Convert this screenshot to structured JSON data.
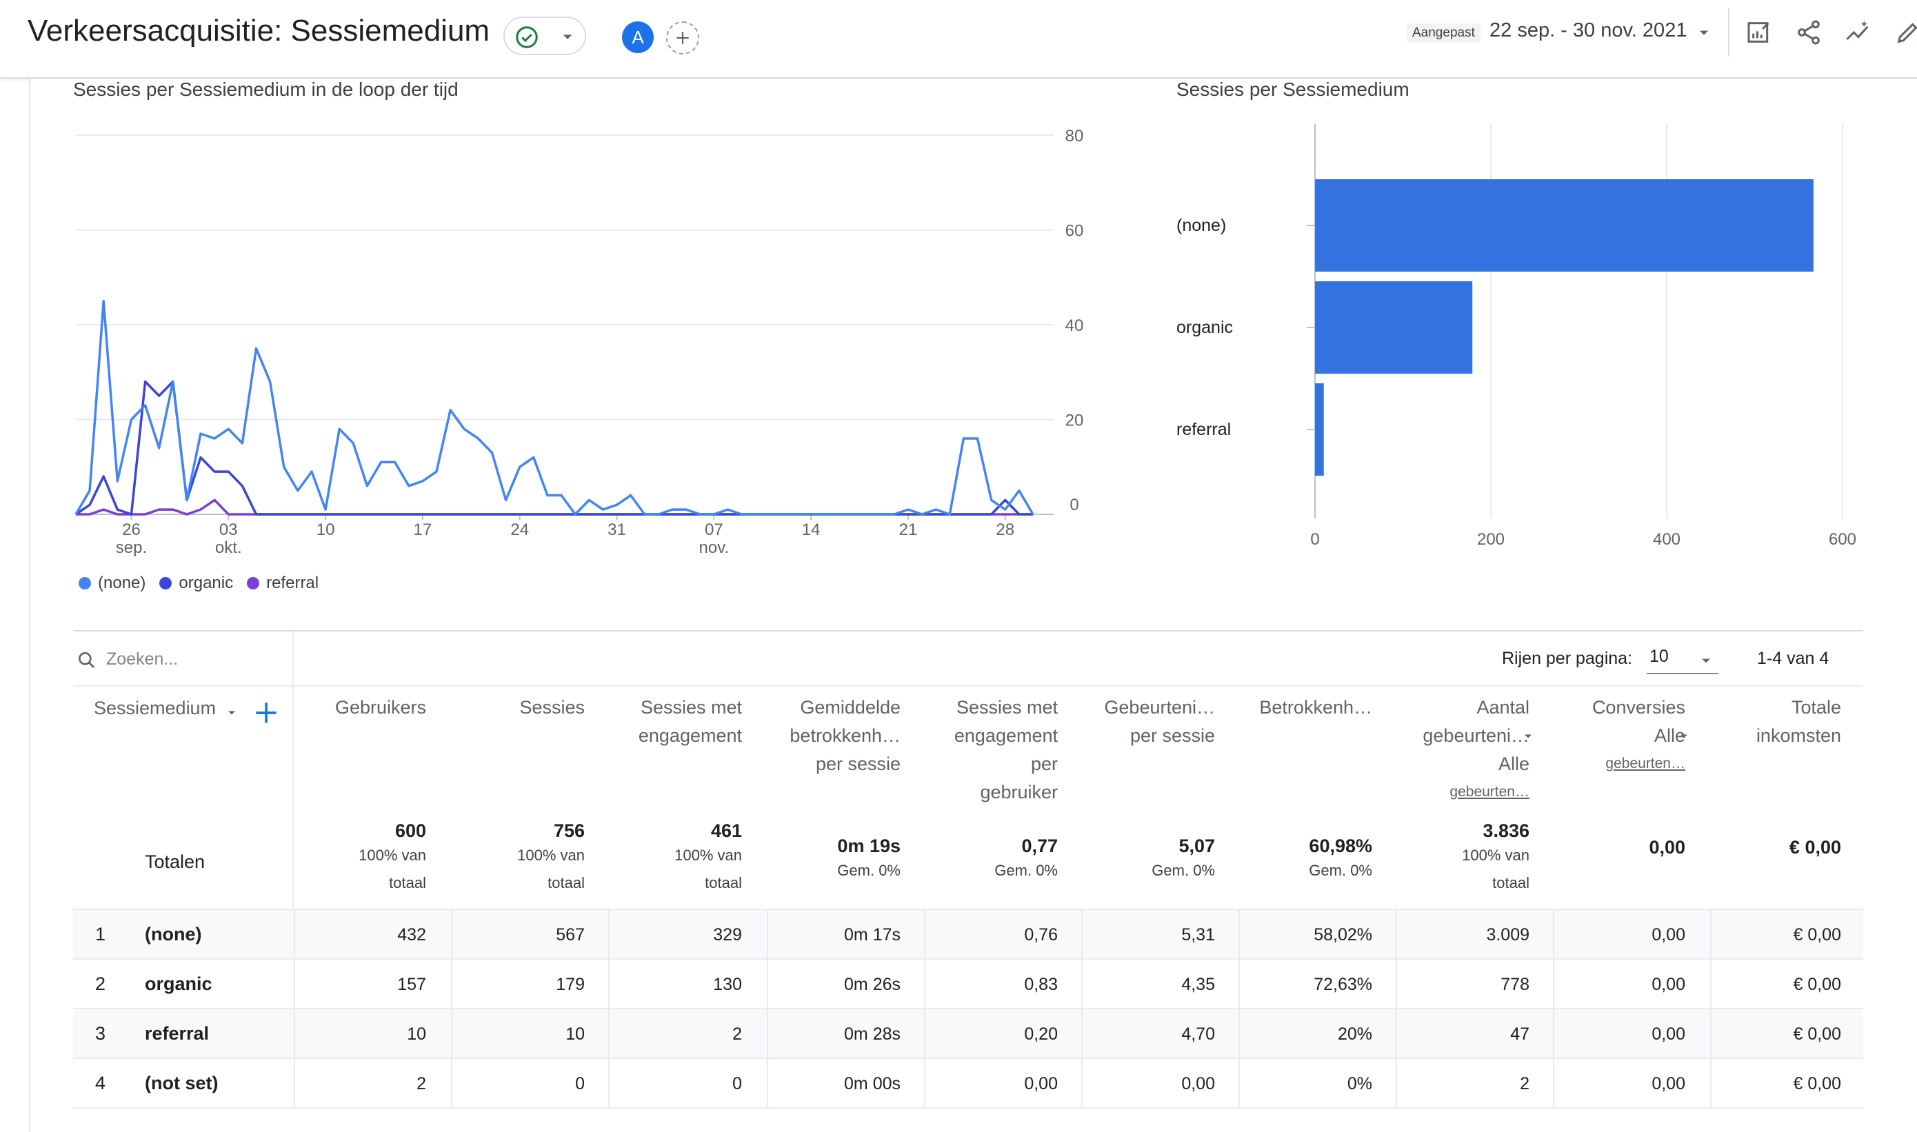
{
  "header": {
    "title": "Verkeersacquisitie: Sessiemedium",
    "avatar_letter": "A",
    "date_label": "Aangepast",
    "date_range": "22 sep. - 30 nov. 2021",
    "icons": [
      "customize-report-icon",
      "share-icon",
      "insights-icon",
      "edit-icon"
    ],
    "accent_color": "#1a73e8"
  },
  "line_chart": {
    "title": "Sessies per Sessiemedium in de loop der tijd"
  },
  "bar_chart": {
    "title": "Sessies per Sessiemedium"
  },
  "chart_data": [
    {
      "type": "line",
      "title": "Sessies per Sessiemedium in de loop der tijd",
      "x_start": "2021-09-22",
      "x_end": "2021-11-30",
      "x_ticks": [
        {
          "label": "26",
          "sub": "sep.",
          "day": 4
        },
        {
          "label": "03",
          "sub": "okt.",
          "day": 11
        },
        {
          "label": "10",
          "sub": "",
          "day": 18
        },
        {
          "label": "17",
          "sub": "",
          "day": 25
        },
        {
          "label": "24",
          "sub": "",
          "day": 32
        },
        {
          "label": "31",
          "sub": "",
          "day": 39
        },
        {
          "label": "07",
          "sub": "nov.",
          "day": 46
        },
        {
          "label": "14",
          "sub": "",
          "day": 53
        },
        {
          "label": "21",
          "sub": "",
          "day": 60
        },
        {
          "label": "28",
          "sub": "",
          "day": 67
        }
      ],
      "y_ticks": [
        0,
        20,
        40,
        60,
        80
      ],
      "ylim": [
        0,
        80
      ],
      "y_axis_side": "right",
      "grid": true,
      "legend": "bottom-left",
      "series": [
        {
          "name": "(none)",
          "color": "#4285f4",
          "values": [
            0,
            5,
            45,
            7,
            20,
            23,
            14,
            28,
            3,
            17,
            16,
            18,
            15,
            35,
            28,
            10,
            5,
            9,
            1,
            18,
            15,
            6,
            11,
            11,
            6,
            7,
            9,
            22,
            18,
            16,
            13,
            3,
            10,
            12,
            4,
            4,
            0,
            3,
            1,
            2,
            4,
            0,
            0,
            1,
            1,
            0,
            0,
            1,
            0,
            0,
            0,
            0,
            0,
            0,
            0,
            0,
            0,
            0,
            0,
            0,
            1,
            0,
            1,
            0,
            16,
            16,
            3,
            1,
            5,
            0
          ]
        },
        {
          "name": "organic",
          "color": "#3b45d9",
          "values": [
            0,
            2,
            8,
            1,
            0,
            28,
            25,
            28,
            3,
            12,
            9,
            9,
            6,
            0,
            0,
            0,
            0,
            0,
            0,
            0,
            0,
            0,
            0,
            0,
            0,
            0,
            0,
            0,
            0,
            0,
            0,
            0,
            0,
            0,
            0,
            0,
            0,
            0,
            0,
            0,
            0,
            0,
            0,
            0,
            0,
            0,
            0,
            0,
            0,
            0,
            0,
            0,
            0,
            0,
            0,
            0,
            0,
            0,
            0,
            0,
            0,
            0,
            0,
            0,
            0,
            0,
            0,
            3,
            0,
            0
          ]
        },
        {
          "name": "referral",
          "color": "#7b3fd6",
          "values": [
            0,
            0,
            1,
            0,
            0,
            0,
            1,
            1,
            0,
            1,
            3,
            0,
            0,
            0,
            0,
            0,
            0,
            0,
            0,
            0,
            0,
            0,
            0,
            0,
            0,
            0,
            0,
            0,
            0,
            0,
            0,
            0,
            0,
            0,
            0,
            0,
            0,
            0,
            0,
            0,
            0,
            0,
            0,
            0,
            0,
            0,
            0,
            0,
            0,
            0,
            0,
            0,
            0,
            0,
            0,
            0,
            0,
            0,
            0,
            0,
            0,
            0,
            0,
            0,
            0,
            0,
            0,
            0,
            0,
            0
          ]
        }
      ]
    },
    {
      "type": "bar",
      "orientation": "horizontal",
      "title": "Sessies per Sessiemedium",
      "categories": [
        "(none)",
        "organic",
        "referral"
      ],
      "values": [
        567,
        179,
        10
      ],
      "color": "#3273e0",
      "x_ticks": [
        0,
        200,
        400,
        600
      ],
      "xlim": [
        0,
        600
      ],
      "grid": true
    }
  ],
  "table": {
    "search_placeholder": "Zoeken...",
    "rows_per_page_label": "Rijen per pagina:",
    "rows_per_page": "10",
    "pagination": "1-4 van 4",
    "dimension_header": "Sessiemedium",
    "columns": [
      {
        "lines": [
          "Gebruikers"
        ],
        "sub": ""
      },
      {
        "lines": [
          "Sessies"
        ],
        "sub": ""
      },
      {
        "lines": [
          "Sessies met",
          "engagement"
        ],
        "sub": ""
      },
      {
        "lines": [
          "Gemiddelde",
          "betrokkenh…",
          "per sessie"
        ],
        "sub": ""
      },
      {
        "lines": [
          "Sessies met",
          "engagement",
          "per",
          "gebruiker"
        ],
        "sub": ""
      },
      {
        "lines": [
          "Gebeurteni…",
          "per sessie"
        ],
        "sub": ""
      },
      {
        "lines": [
          "Betrokkenh…"
        ],
        "sub": ""
      },
      {
        "lines": [
          "Aantal",
          "gebeurteni…",
          "Alle"
        ],
        "sub": "gebeurten…"
      },
      {
        "lines": [
          "Conversies",
          "Alle"
        ],
        "sub": "gebeurten…"
      },
      {
        "lines": [
          "Totale",
          "inkomsten"
        ],
        "sub": ""
      }
    ],
    "totals_label": "Totalen",
    "totals": [
      {
        "main": "600",
        "sub1": "100% van",
        "sub2": "totaal"
      },
      {
        "main": "756",
        "sub1": "100% van",
        "sub2": "totaal"
      },
      {
        "main": "461",
        "sub1": "100% van",
        "sub2": "totaal"
      },
      {
        "main": "0m 19s",
        "sub1": "Gem. 0%",
        "sub2": ""
      },
      {
        "main": "0,77",
        "sub1": "Gem. 0%",
        "sub2": ""
      },
      {
        "main": "5,07",
        "sub1": "Gem. 0%",
        "sub2": ""
      },
      {
        "main": "60,98%",
        "sub1": "Gem. 0%",
        "sub2": ""
      },
      {
        "main": "3.836",
        "sub1": "100% van",
        "sub2": "totaal"
      },
      {
        "main": "0,00",
        "sub1": "",
        "sub2": ""
      },
      {
        "main": "€ 0,00",
        "sub1": "",
        "sub2": ""
      }
    ],
    "rows": [
      {
        "index": "1",
        "dim": "(none)",
        "cells": [
          "432",
          "567",
          "329",
          "0m 17s",
          "0,76",
          "5,31",
          "58,02%",
          "3.009",
          "0,00",
          "€ 0,00"
        ]
      },
      {
        "index": "2",
        "dim": "organic",
        "cells": [
          "157",
          "179",
          "130",
          "0m 26s",
          "0,83",
          "4,35",
          "72,63%",
          "778",
          "0,00",
          "€ 0,00"
        ]
      },
      {
        "index": "3",
        "dim": "referral",
        "cells": [
          "10",
          "10",
          "2",
          "0m 28s",
          "0,20",
          "4,70",
          "20%",
          "47",
          "0,00",
          "€ 0,00"
        ]
      },
      {
        "index": "4",
        "dim": "(not set)",
        "cells": [
          "2",
          "0",
          "0",
          "0m 00s",
          "0,00",
          "0,00",
          "0%",
          "2",
          "0,00",
          "€ 0,00"
        ]
      }
    ]
  }
}
